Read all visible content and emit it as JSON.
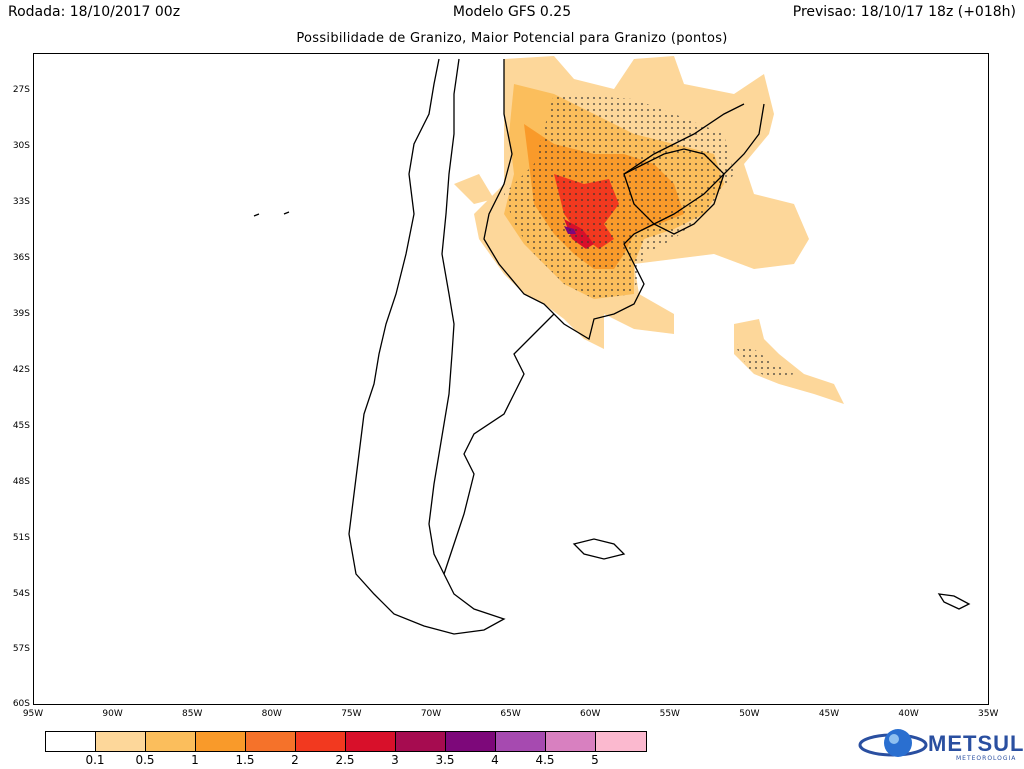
{
  "header": {
    "run": "Rodada: 18/10/2017 00z",
    "model": "Modelo GFS 0.25",
    "forecast": "Previsao: 18/10/17 18z (+018h)"
  },
  "map_title": "Possibilidade de Granizo, Maior Potencial para Granizo (pontos)",
  "lat_labels": [
    "27S",
    "30S",
    "33S",
    "36S",
    "39S",
    "42S",
    "45S",
    "48S",
    "51S",
    "54S",
    "57S",
    "60S"
  ],
  "lon_labels": [
    "95W",
    "90W",
    "85W",
    "80W",
    "75W",
    "70W",
    "65W",
    "60W",
    "55W",
    "50W",
    "45W",
    "40W",
    "35W"
  ],
  "legend": {
    "levels": [
      "0.1",
      "0.5",
      "1",
      "1.5",
      "2",
      "2.5",
      "3",
      "3.5",
      "4",
      "4.5",
      "5"
    ],
    "colors": [
      "#ffffff",
      "#fdd79a",
      "#fbbe5c",
      "#f99a2a",
      "#f5722a",
      "#f2391f",
      "#d8102a",
      "#a60c50",
      "#7d087a",
      "#a64ab0",
      "#d880c0",
      "#fbb9cf"
    ]
  },
  "logo": {
    "name": "METSUL",
    "sub": "METEOROLOGIA"
  }
}
